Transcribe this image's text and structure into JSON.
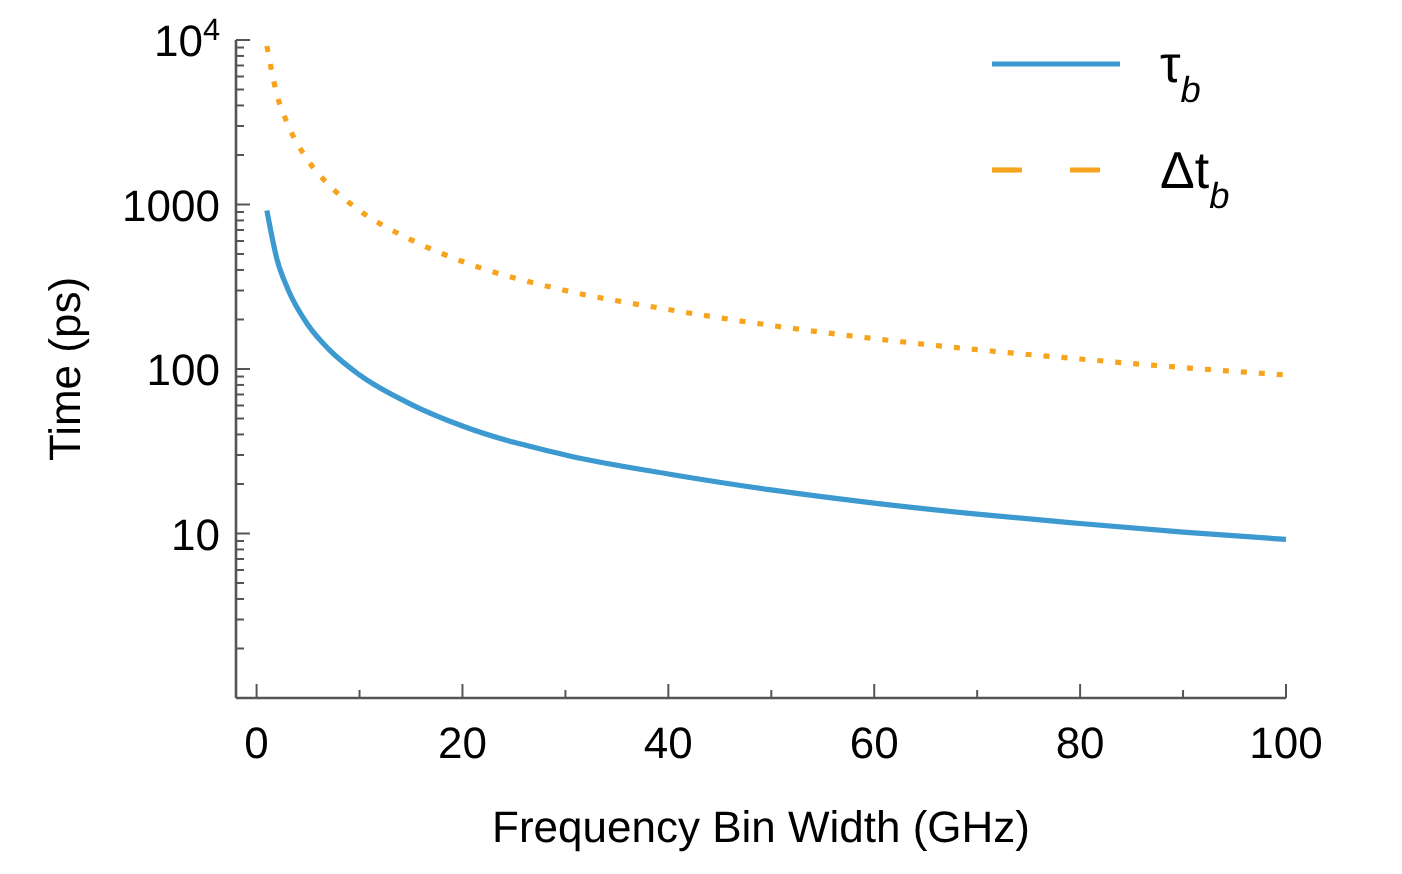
{
  "chart_data": {
    "type": "line",
    "xlabel": "Frequency Bin Width (GHz)",
    "ylabel": "Time (ps)",
    "log": "y",
    "xlim": [
      -2,
      100
    ],
    "ylim": [
      1,
      10000
    ],
    "xticks": [
      0,
      {
        "value": 10,
        "label": null
      },
      20,
      {
        "value": 30,
        "label": null
      },
      40,
      {
        "value": 50,
        "label": null
      },
      60,
      {
        "value": 70,
        "label": null
      },
      80,
      {
        "value": 90,
        "label": null
      },
      100
    ],
    "yticks": [
      {
        "value": 2,
        "label": null
      },
      {
        "value": 3,
        "label": null
      },
      {
        "value": 4,
        "label": null
      },
      {
        "value": 5,
        "label": null
      },
      {
        "value": 6,
        "label": null
      },
      {
        "value": 7,
        "label": null
      },
      {
        "value": 8,
        "label": null
      },
      {
        "value": 9,
        "label": null
      },
      10,
      {
        "value": 20,
        "label": null
      },
      {
        "value": 30,
        "label": null
      },
      {
        "value": 40,
        "label": null
      },
      {
        "value": 50,
        "label": null
      },
      {
        "value": 60,
        "label": null
      },
      {
        "value": 70,
        "label": null
      },
      {
        "value": 80,
        "label": null
      },
      {
        "value": 90,
        "label": null
      },
      100,
      {
        "value": 200,
        "label": null
      },
      {
        "value": 300,
        "label": null
      },
      {
        "value": 400,
        "label": null
      },
      {
        "value": 500,
        "label": null
      },
      {
        "value": 600,
        "label": null
      },
      {
        "value": 700,
        "label": null
      },
      {
        "value": 800,
        "label": null
      },
      {
        "value": 900,
        "label": null
      },
      1000,
      {
        "value": 2000,
        "label": null
      },
      {
        "value": 3000,
        "label": null
      },
      {
        "value": 4000,
        "label": null
      },
      {
        "value": 5000,
        "label": null
      },
      {
        "value": 6000,
        "label": null
      },
      {
        "value": 7000,
        "label": null
      },
      {
        "value": 8000,
        "label": null
      },
      {
        "value": 9000,
        "label": null
      },
      {
        "value": 10000,
        "label": "10$^{4}$"
      }
    ],
    "x": [
      1,
      2,
      3,
      5,
      7,
      10,
      15,
      20,
      30,
      40,
      50,
      60,
      70,
      80,
      90,
      100
    ],
    "legend": "top right",
    "grid": false,
    "series": [
      {
        "name": "τ$_{b}$",
        "color": "#3d9ad1",
        "line_style": "solid",
        "values": [
          920,
          460,
          310,
          185,
          132,
          92,
          61,
          45,
          30,
          23,
          18.4,
          15.3,
          13.1,
          11.5,
          10.2,
          9.2
        ]
      },
      {
        "name": "Δt$_{b}$",
        "color": "#f7a31c",
        "line_style": "dotted",
        "values": [
          9200,
          4600,
          3100,
          1850,
          1320,
          920,
          610,
          450,
          300,
          230,
          184,
          153,
          131,
          115,
          102,
          92
        ]
      }
    ]
  }
}
